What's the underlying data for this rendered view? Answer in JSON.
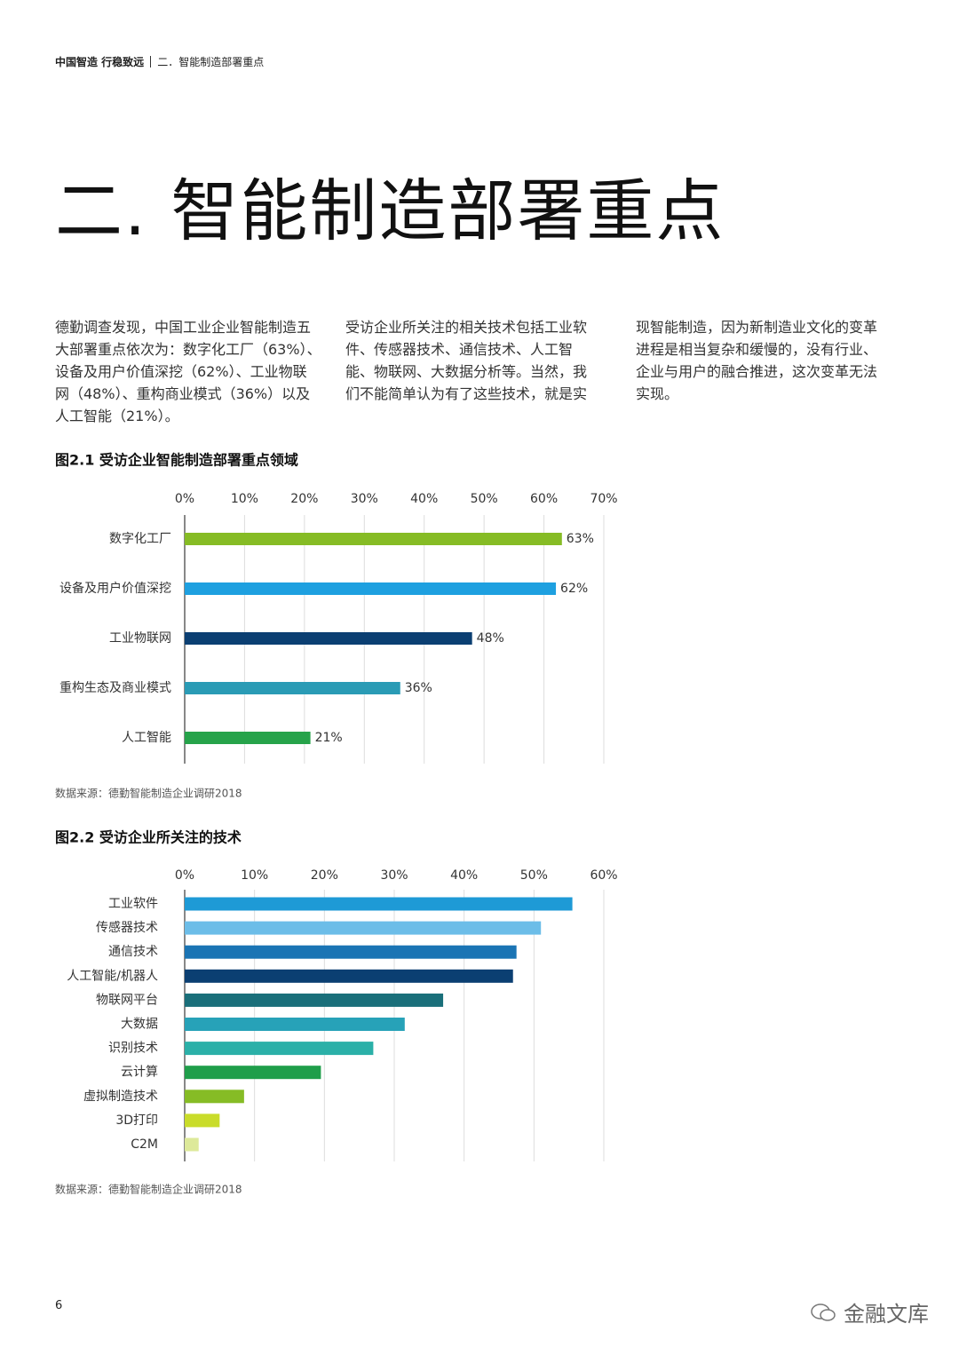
{
  "header": {
    "brand": "中国智造 行稳致远",
    "section": "二．智能制造部署重点"
  },
  "title": "二. 智能制造部署重点",
  "columns": [
    [
      "德勤调查发现，中国工业企业智能制造五",
      "大部署重点依次为：数字化工厂（63%）、",
      "设备及用户价值深挖（62%）、工业物联",
      "网（48%）、重构商业模式（36%）以及",
      "人工智能（21%）。"
    ],
    [
      "受访企业所关注的相关技术包括工业软",
      "件、传感器技术、通信技术、人工智",
      "能、物联网、大数据分析等。当然，我",
      "们不能简单认为有了这些技术，就是实"
    ],
    [
      "现智能制造，因为新制造业文化的变革",
      "进程是相当复杂和缓慢的，没有行业、",
      "企业与用户的融合推进，这次变革无法",
      "实现。"
    ]
  ],
  "chart_data": [
    {
      "type": "bar",
      "orientation": "horizontal",
      "title": "图2.1 受访企业智能制造部署重点领域",
      "categories": [
        "数字化工厂",
        "设备及用户价值深挖",
        "工业物联网",
        "重构生态及商业模式",
        "人工智能"
      ],
      "values": [
        63,
        62,
        48,
        36,
        21
      ],
      "value_labels": [
        "63%",
        "62%",
        "48%",
        "36%",
        "21%"
      ],
      "colors": [
        "#86bc25",
        "#1ea0e0",
        "#0b3f72",
        "#2a9bb5",
        "#26a34a"
      ],
      "xlim": [
        0,
        70
      ],
      "xticks": [
        {
          "value": 0,
          "label": "0%"
        },
        {
          "value": 10,
          "label": "10%"
        },
        {
          "value": 20,
          "label": "20%"
        },
        {
          "value": 30,
          "label": "30%"
        },
        {
          "value": 40,
          "label": "40%"
        },
        {
          "value": 50,
          "label": "50%"
        },
        {
          "value": 60,
          "label": "60%"
        },
        {
          "value": 70,
          "label": "70%"
        }
      ],
      "grid": true,
      "source": "数据来源：德勤智能制造企业调研2018"
    },
    {
      "type": "bar",
      "orientation": "horizontal",
      "title": "图2.2 受访企业所关注的技术",
      "categories": [
        "工业软件",
        "传感器技术",
        "通信技术",
        "人工智能/机器人",
        "物联网平台",
        "大数据",
        "识别技术",
        "云计算",
        "虚拟制造技术",
        "3D打印",
        "C2M"
      ],
      "values": [
        55.5,
        51,
        47.5,
        47,
        37,
        31.5,
        27,
        19.5,
        8.5,
        5,
        2
      ],
      "colors": [
        "#1e9ad6",
        "#6cbde8",
        "#1a74b4",
        "#0b3f72",
        "#1a6f7a",
        "#27a2b8",
        "#2bb0a8",
        "#1f9e4a",
        "#86bc25",
        "#c9dc2a",
        "#dde99a"
      ],
      "xlim": [
        0,
        60
      ],
      "xticks": [
        {
          "value": 0,
          "label": "0%"
        },
        {
          "value": 10,
          "label": "10%"
        },
        {
          "value": 20,
          "label": "20%"
        },
        {
          "value": 30,
          "label": "30%"
        },
        {
          "value": 40,
          "label": "40%"
        },
        {
          "value": 50,
          "label": "50%"
        },
        {
          "value": 60,
          "label": "60%"
        }
      ],
      "grid": true,
      "source": "数据来源：德勤智能制造企业调研2018"
    }
  ],
  "page_number": "6",
  "watermark": "金融文库"
}
